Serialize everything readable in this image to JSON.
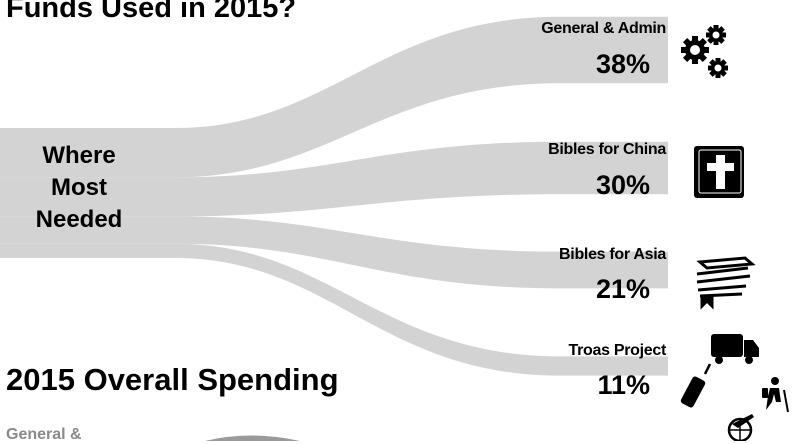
{
  "chart_data": {
    "type": "sankey",
    "title": "Funds Used in 2015?",
    "source": {
      "lines": [
        "Where",
        "Most",
        "Needed"
      ]
    },
    "flows": [
      {
        "label": "General & Admin",
        "value": 38,
        "display": "38%",
        "icon": "gears-icon"
      },
      {
        "label": "Bibles for China",
        "value": 30,
        "display": "30%",
        "icon": "bible-cross-icon"
      },
      {
        "label": "Bibles for Asia",
        "value": 21,
        "display": "21%",
        "icon": "stacked-books-icon"
      },
      {
        "label": "Troas Project",
        "value": 11,
        "display": "11%",
        "icon": "travel-icons"
      }
    ],
    "flow_color": "#d3d3d3"
  },
  "secondary": {
    "title": "2015 Overall Spending",
    "pie_label_partial": "General &"
  }
}
